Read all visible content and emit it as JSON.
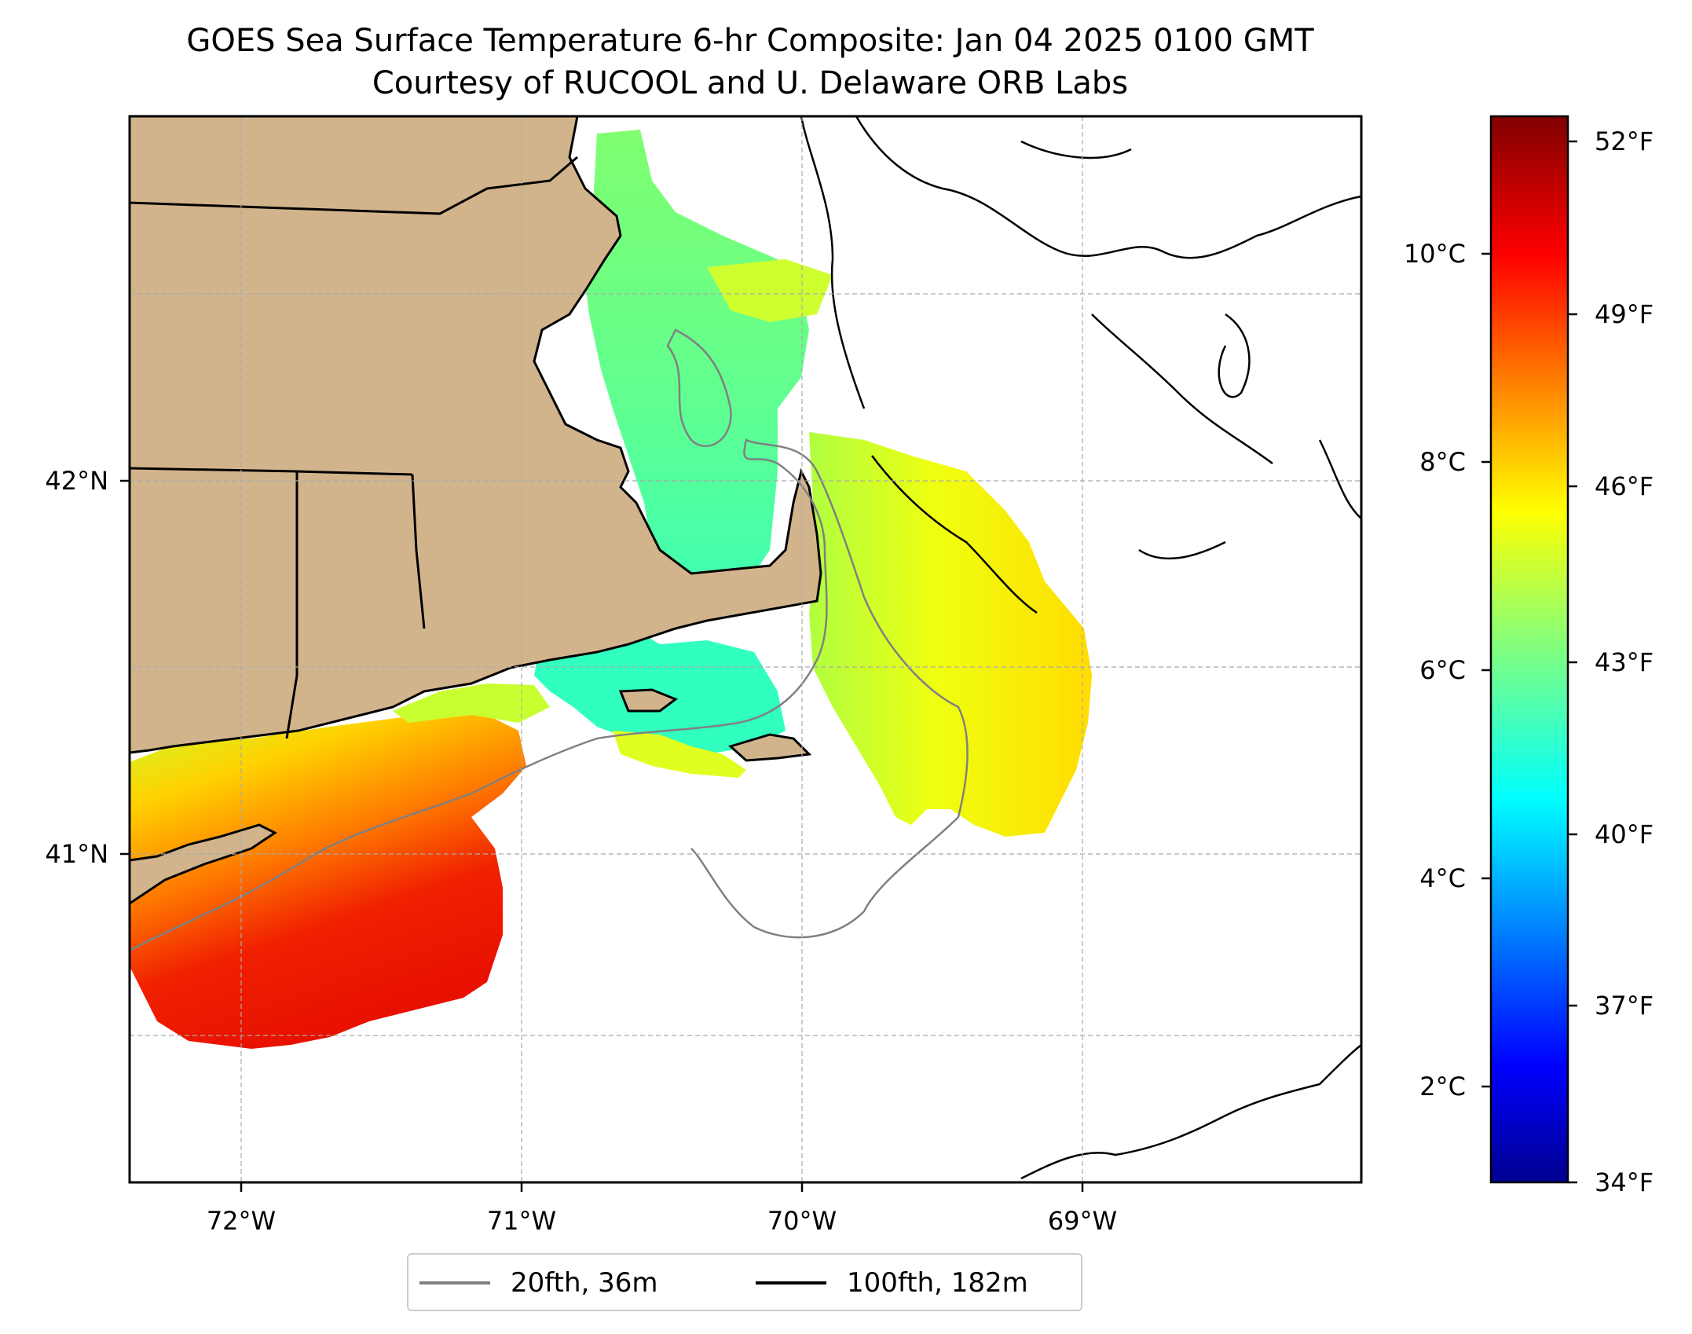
{
  "title": {
    "line1": "GOES Sea Surface Temperature 6-hr Composite: Jan 04 2025 0100 GMT",
    "line2": "Courtesy of RUCOOL and U. Delaware ORB Labs"
  },
  "map": {
    "region": "Southern New England / Cape Cod / Gulf of Maine",
    "longitude_ticks": [
      "72°W",
      "71°W",
      "70°W",
      "69°W"
    ],
    "latitude_ticks": [
      "42°N",
      "41°N"
    ],
    "extent": {
      "lon": [
        -72.4,
        -68.0
      ],
      "lat": [
        40.15,
        43.0
      ]
    },
    "grid": true,
    "colors": {
      "land": "#d2b48c",
      "coast": "#000000",
      "isobath_20fth": "#808080",
      "isobath_100fth": "#000000"
    }
  },
  "colorbar": {
    "colormap": "jet",
    "celsius_ticks": [
      "2°C",
      "4°C",
      "6°C",
      "8°C",
      "10°C"
    ],
    "fahrenheit_ticks": [
      "34°F",
      "37°F",
      "40°F",
      "43°F",
      "46°F",
      "49°F",
      "52°F"
    ],
    "range_f": [
      34,
      53
    ]
  },
  "legend": {
    "items": [
      {
        "label": "20fth, 36m",
        "color": "#808080"
      },
      {
        "label": "100fth, 182m",
        "color": "#000000"
      }
    ]
  }
}
